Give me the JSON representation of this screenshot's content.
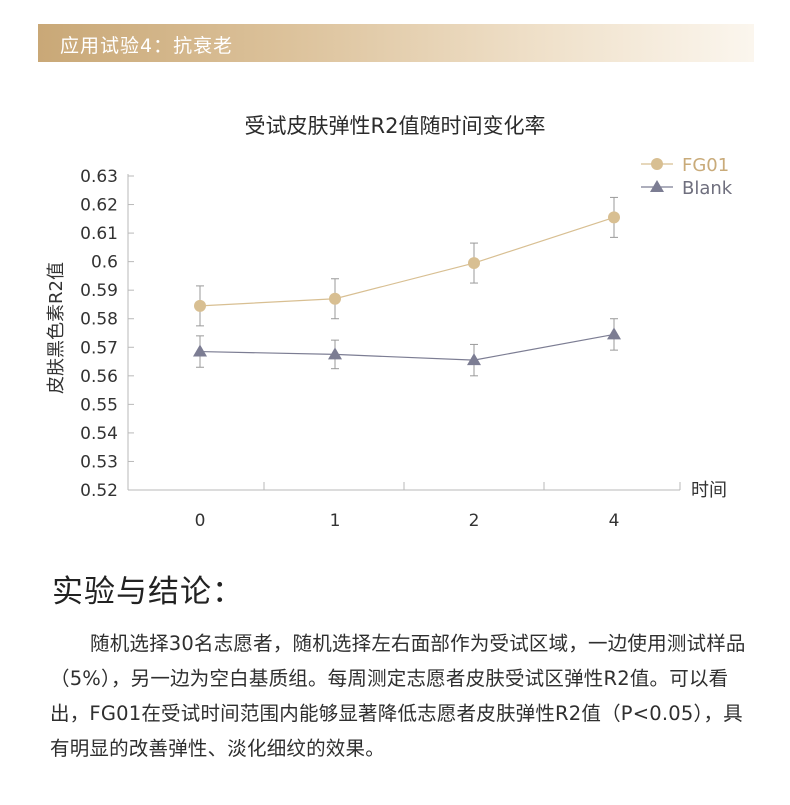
{
  "banner": {
    "title": "应用试验4：抗衰老"
  },
  "conclusion": {
    "heading": "实验与结论：",
    "paragraph": "随机选择30名志愿者，随机选择左右面部作为受试区域，一边使用测试样品（5%），另一边为空白基质组。每周测定志愿者皮肤受试区弹性R2值。可以看出，FG01在受试时间范围内能够显著降低志愿者皮肤弹性R2值（P<0.05），具有明显的改善弹性、淡化细纹的效果。"
  },
  "chart_data": {
    "type": "line",
    "title": "受试皮肤弹性R2值随时间变化率",
    "xlabel": "时间",
    "ylabel": "皮肤黑色素R2值",
    "categories": [
      "0",
      "1",
      "2",
      "4"
    ],
    "ylim": [
      0.52,
      0.63
    ],
    "yticks": [
      "0.63",
      "0.62",
      "0.61",
      "0.6",
      "0.59",
      "0.58",
      "0.57",
      "0.56",
      "0.55",
      "0.54",
      "0.53",
      "0.52"
    ],
    "grid": false,
    "legend_position": "top-right",
    "error_bars": true,
    "series": [
      {
        "name": "FG01",
        "marker": "circle",
        "color": "#d8bf92",
        "values": [
          0.5845,
          0.587,
          0.5995,
          0.6155
        ],
        "errors": [
          0.007,
          0.007,
          0.007,
          0.007
        ]
      },
      {
        "name": "Blank",
        "marker": "triangle",
        "color": "#7c7d93",
        "values": [
          0.5685,
          0.5675,
          0.5655,
          0.5745
        ],
        "errors": [
          0.0055,
          0.005,
          0.0055,
          0.0055
        ]
      }
    ]
  }
}
